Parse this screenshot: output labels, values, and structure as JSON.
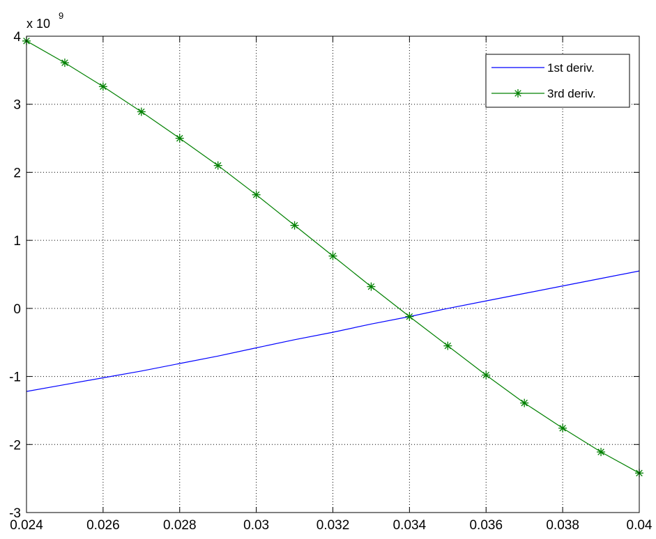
{
  "chart_data": {
    "type": "line",
    "title": "",
    "xlabel": "",
    "ylabel": "",
    "xlim": [
      0.024,
      0.04
    ],
    "ylim": [
      -3,
      4
    ],
    "y_multiplier": {
      "base": "x 10",
      "exponent": "9"
    },
    "grid": true,
    "legend_position": "top-right",
    "x_ticks": [
      0.024,
      0.026,
      0.028,
      0.03,
      0.032,
      0.034,
      0.036,
      0.038,
      0.04
    ],
    "x_tick_labels": [
      "0.024",
      "0.026",
      "0.028",
      "0.03",
      "0.032",
      "0.034",
      "0.036",
      "0.038",
      "0.04"
    ],
    "y_ticks": [
      -3,
      -2,
      -1,
      0,
      1,
      2,
      3,
      4
    ],
    "y_tick_labels": [
      "-3",
      "-2",
      "-1",
      "0",
      "1",
      "2",
      "3",
      "4"
    ],
    "series": [
      {
        "name": "1st deriv.",
        "color": "#0000ff",
        "marker": "none",
        "x": [
          0.024,
          0.025,
          0.026,
          0.027,
          0.028,
          0.029,
          0.03,
          0.031,
          0.032,
          0.033,
          0.034,
          0.035,
          0.036,
          0.037,
          0.038,
          0.039,
          0.04
        ],
        "y": [
          -1.22,
          -1.12,
          -1.02,
          -0.92,
          -0.81,
          -0.7,
          -0.58,
          -0.46,
          -0.35,
          -0.23,
          -0.12,
          0.0,
          0.11,
          0.22,
          0.33,
          0.44,
          0.55
        ]
      },
      {
        "name": "3rd deriv.",
        "color": "#008000",
        "marker": "asterisk",
        "x": [
          0.024,
          0.025,
          0.026,
          0.027,
          0.028,
          0.029,
          0.03,
          0.031,
          0.032,
          0.033,
          0.034,
          0.035,
          0.036,
          0.037,
          0.038,
          0.039,
          0.04
        ],
        "y": [
          3.93,
          3.61,
          3.26,
          2.89,
          2.5,
          2.1,
          1.67,
          1.22,
          0.77,
          0.32,
          -0.12,
          -0.55,
          -0.98,
          -1.39,
          -1.76,
          -2.11,
          -2.42
        ]
      }
    ]
  }
}
